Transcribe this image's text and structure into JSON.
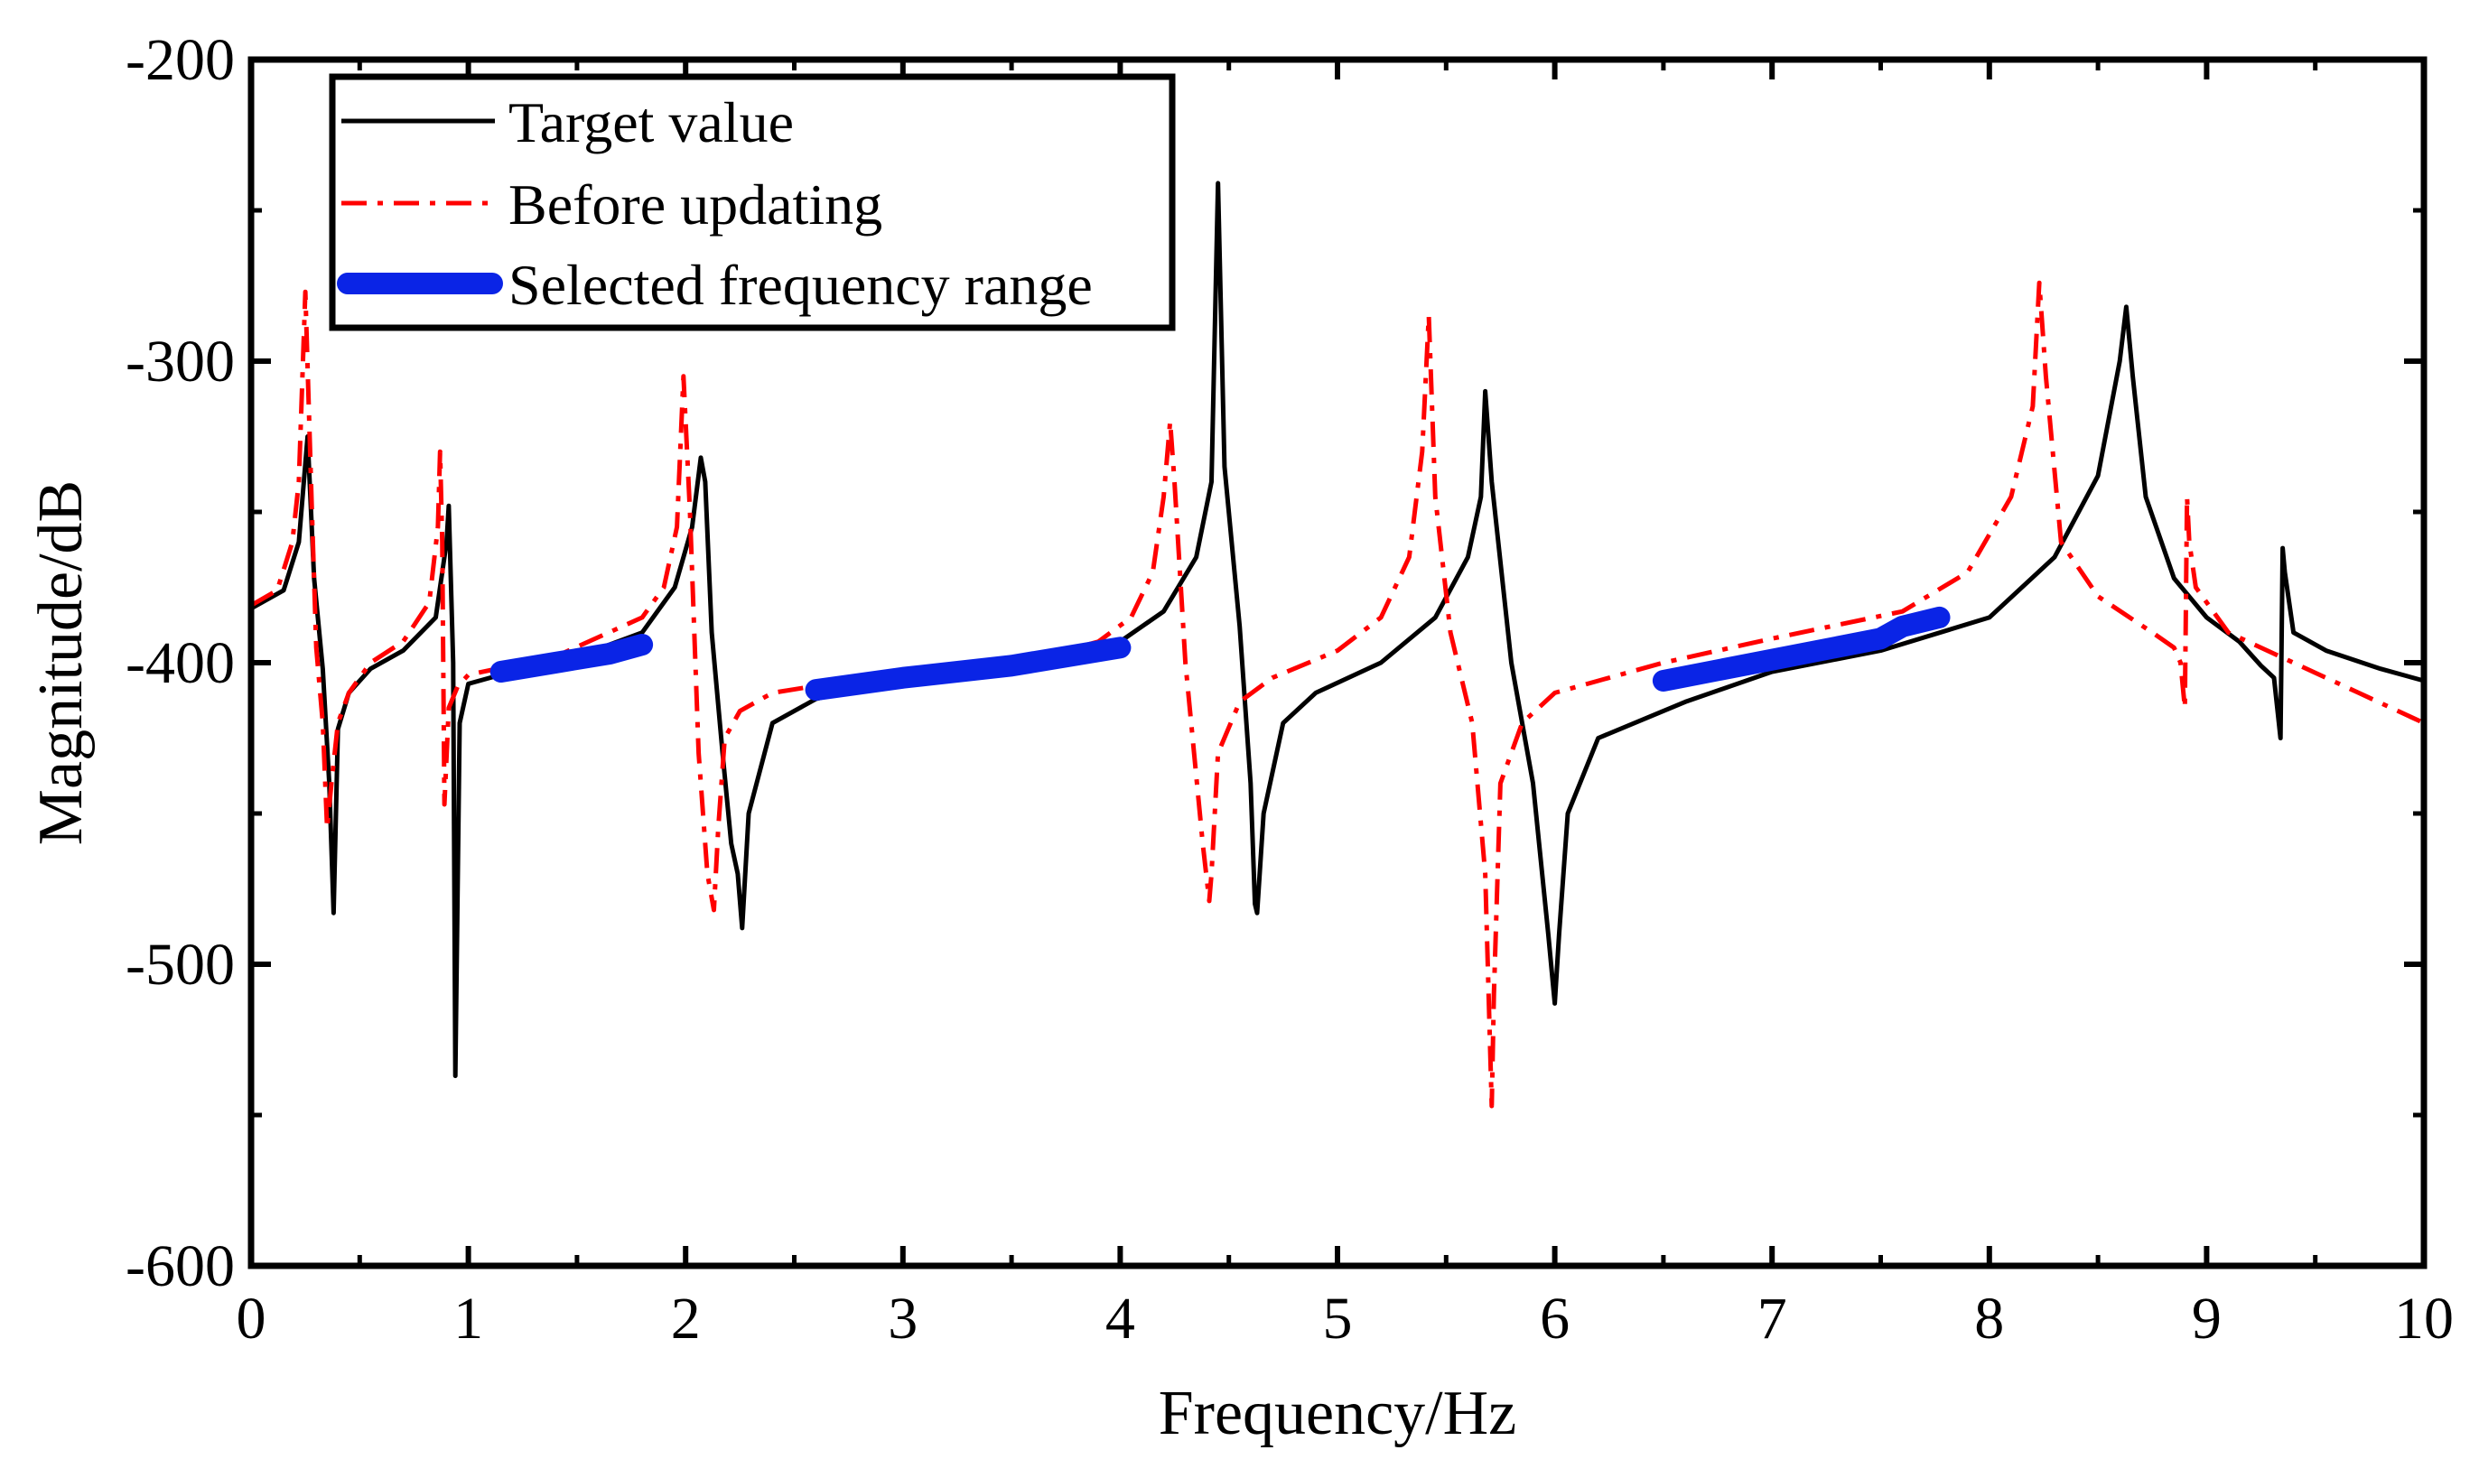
{
  "chart_data": {
    "type": "line",
    "title": "",
    "xlabel": "Frequency/Hz",
    "ylabel": "Magnitude/dB",
    "xlim": [
      0,
      10
    ],
    "ylim": [
      -600,
      -200
    ],
    "xticks": [
      "0",
      "1",
      "2",
      "3",
      "4",
      "5",
      "6",
      "7",
      "8",
      "9",
      "10"
    ],
    "yticks": [
      "-200",
      "-300",
      "-400",
      "-500",
      "-600"
    ],
    "grid": false,
    "legend_position": "top-left",
    "legend": [
      "Target value",
      "Before updating",
      "Selected frequency range"
    ],
    "colors": {
      "target": "#000000",
      "before": "#ff0000",
      "selected": "#0a24e6"
    },
    "series": [
      {
        "name": "Target value",
        "style": "solid",
        "x": [
          0,
          0.15,
          0.22,
          0.26,
          0.29,
          0.33,
          0.36,
          0.38,
          0.4,
          0.45,
          0.55,
          0.7,
          0.85,
          0.9,
          0.91,
          0.93,
          0.94,
          0.96,
          1.0,
          1.2,
          1.5,
          1.8,
          1.95,
          2.03,
          2.07,
          2.09,
          2.12,
          2.17,
          2.21,
          2.24,
          2.26,
          2.29,
          2.4,
          2.6,
          3.0,
          3.5,
          4.0,
          4.2,
          4.35,
          4.42,
          4.45,
          4.48,
          4.55,
          4.6,
          4.62,
          4.63,
          4.66,
          4.75,
          4.9,
          5.2,
          5.45,
          5.6,
          5.66,
          5.68,
          5.71,
          5.8,
          5.9,
          5.97,
          6.0,
          6.02,
          6.06,
          6.2,
          6.6,
          7.0,
          7.5,
          8.0,
          8.3,
          8.5,
          8.6,
          8.63,
          8.66,
          8.72,
          8.85,
          9.0,
          9.15,
          9.25,
          9.31,
          9.34,
          9.35,
          9.36,
          9.4,
          9.55,
          9.8,
          10.0
        ],
        "y": [
          -382,
          -376,
          -360,
          -325,
          -372,
          -402,
          -440,
          -483,
          -422,
          -410,
          -402,
          -396,
          -385,
          -360,
          -348,
          -400,
          -537,
          -420,
          -407,
          -403,
          -398,
          -390,
          -375,
          -355,
          -332,
          -340,
          -390,
          -430,
          -460,
          -470,
          -488,
          -450,
          -420,
          -412,
          -405,
          -400,
          -393,
          -383,
          -365,
          -340,
          -241,
          -335,
          -388,
          -440,
          -480,
          -483,
          -450,
          -420,
          -410,
          -400,
          -385,
          -365,
          -345,
          -310,
          -340,
          -400,
          -440,
          -490,
          -513,
          -490,
          -450,
          -425,
          -413,
          -403,
          -396,
          -385,
          -365,
          -338,
          -300,
          -282,
          -305,
          -345,
          -372,
          -385,
          -393,
          -401,
          -405,
          -425,
          -362,
          -370,
          -390,
          -396,
          -402,
          -406
        ]
      },
      {
        "name": "Before updating",
        "style": "dashdot",
        "x": [
          0,
          0.12,
          0.19,
          0.22,
          0.25,
          0.28,
          0.3,
          0.33,
          0.35,
          0.37,
          0.4,
          0.45,
          0.55,
          0.7,
          0.82,
          0.86,
          0.87,
          0.88,
          0.89,
          0.91,
          0.95,
          1.0,
          1.4,
          1.8,
          1.9,
          1.96,
          1.99,
          2.02,
          2.06,
          2.1,
          2.13,
          2.15,
          2.18,
          2.25,
          2.4,
          3.0,
          3.6,
          3.9,
          4.05,
          4.15,
          4.2,
          4.23,
          4.25,
          4.3,
          4.38,
          4.41,
          4.42,
          4.45,
          4.55,
          4.7,
          5.0,
          5.2,
          5.33,
          5.39,
          5.42,
          5.45,
          5.52,
          5.62,
          5.68,
          5.71,
          5.72,
          5.75,
          5.85,
          6.0,
          6.5,
          7.0,
          7.6,
          7.9,
          8.1,
          8.2,
          8.23,
          8.26,
          8.33,
          8.5,
          8.75,
          8.85,
          8.88,
          8.9,
          8.91,
          8.92,
          8.95,
          9.1,
          9.4,
          9.7,
          10.0
        ],
        "y": [
          -381,
          -376,
          -360,
          -340,
          -277,
          -350,
          -395,
          -420,
          -455,
          -440,
          -420,
          -410,
          -400,
          -393,
          -380,
          -355,
          -330,
          -360,
          -447,
          -415,
          -408,
          -404,
          -398,
          -385,
          -375,
          -355,
          -305,
          -350,
          -430,
          -470,
          -482,
          -455,
          -425,
          -416,
          -410,
          -403,
          -399,
          -393,
          -385,
          -370,
          -345,
          -320,
          -340,
          -400,
          -460,
          -479,
          -470,
          -430,
          -413,
          -405,
          -396,
          -385,
          -365,
          -330,
          -285,
          -345,
          -390,
          -420,
          -470,
          -547,
          -510,
          -440,
          -420,
          -410,
          -400,
          -392,
          -383,
          -370,
          -345,
          -315,
          -274,
          -305,
          -360,
          -378,
          -390,
          -395,
          -400,
          -415,
          -345,
          -360,
          -375,
          -390,
          -400,
          -410,
          -420
        ]
      },
      {
        "name": "Selected frequency range",
        "style": "thick",
        "segments": [
          {
            "x": [
              1.15,
              1.4,
              1.65,
              1.8
            ],
            "y": [
              -403,
              -400,
              -397,
              -394
            ]
          },
          {
            "x": [
              2.6,
              3.0,
              3.5,
              4.0
            ],
            "y": [
              -409,
              -405,
              -401,
              -395
            ]
          },
          {
            "x": [
              6.5,
              7.0,
              7.5,
              7.6,
              7.77
            ],
            "y": [
              -406,
              -399,
              -392,
              -388,
              -385
            ]
          }
        ]
      }
    ]
  }
}
